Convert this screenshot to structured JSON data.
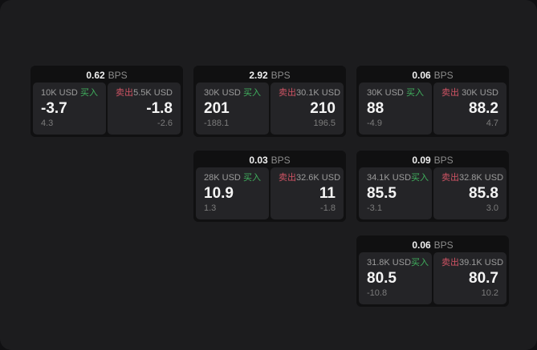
{
  "labels": {
    "bps_unit": "BPS",
    "buy": "买入",
    "sell": "卖出"
  },
  "colors": {
    "buy_green": "#40b05e",
    "sell_red": "#cf5364",
    "window_bg": "#1c1c1e",
    "card_bg": "#101011",
    "panel_bg": "#242427"
  },
  "cards": [
    {
      "bps": "0.62",
      "col": 1,
      "row": 1,
      "buy": {
        "amount": "10K USD",
        "value": "-3.7",
        "sub": "4.3"
      },
      "sell": {
        "amount": "5.5K USD",
        "value": "-1.8",
        "sub": "-2.6"
      }
    },
    {
      "bps": "2.92",
      "col": 2,
      "row": 1,
      "buy": {
        "amount": "30K USD",
        "value": "201",
        "sub": "-188.1"
      },
      "sell": {
        "amount": "30.1K USD",
        "value": "210",
        "sub": "196.5"
      }
    },
    {
      "bps": "0.06",
      "col": 3,
      "row": 1,
      "buy": {
        "amount": "30K USD",
        "value": "88",
        "sub": "-4.9"
      },
      "sell": {
        "amount": "30K USD",
        "value": "88.2",
        "sub": "4.7"
      }
    },
    {
      "bps": "0.03",
      "col": 2,
      "row": 2,
      "buy": {
        "amount": "28K USD",
        "value": "10.9",
        "sub": "1.3"
      },
      "sell": {
        "amount": "32.6K USD",
        "value": "11",
        "sub": "-1.8"
      }
    },
    {
      "bps": "0.09",
      "col": 3,
      "row": 2,
      "buy": {
        "amount": "34.1K USD",
        "value": "85.5",
        "sub": "-3.1"
      },
      "sell": {
        "amount": "32.8K USD",
        "value": "85.8",
        "sub": "3.0"
      }
    },
    {
      "bps": "0.06",
      "col": 3,
      "row": 3,
      "buy": {
        "amount": "31.8K USD",
        "value": "80.5",
        "sub": "-10.8"
      },
      "sell": {
        "amount": "39.1K USD",
        "value": "80.7",
        "sub": "10.2"
      }
    }
  ]
}
